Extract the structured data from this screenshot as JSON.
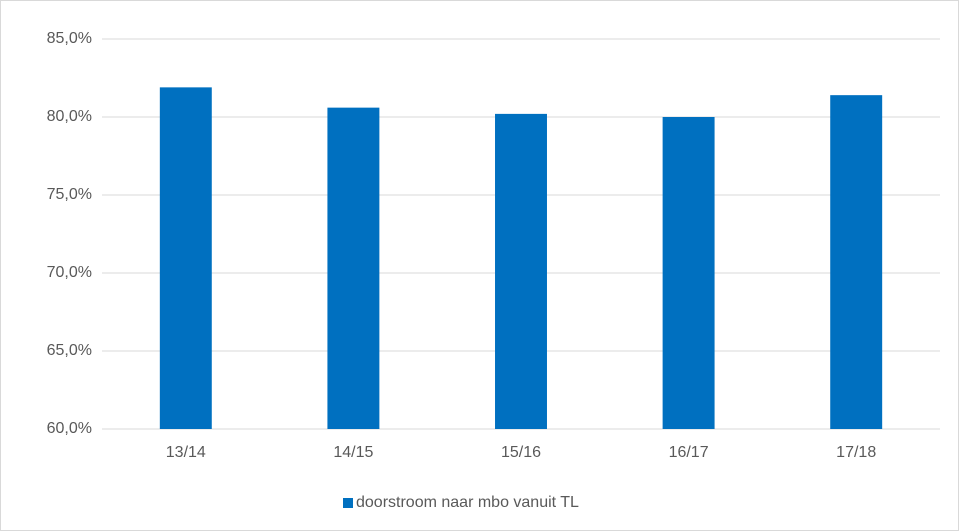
{
  "chart_data": {
    "type": "bar",
    "categories": [
      "13/14",
      "14/15",
      "15/16",
      "16/17",
      "17/18"
    ],
    "series": [
      {
        "name": "doorstroom naar mbo vanuit TL",
        "color": "#0070c0",
        "values": [
          81.9,
          80.6,
          80.2,
          80.0,
          81.4
        ]
      }
    ],
    "ylim": [
      60,
      85
    ],
    "yticks": [
      {
        "value": 60,
        "label": "60,0%"
      },
      {
        "value": 65,
        "label": "65,0%"
      },
      {
        "value": 70,
        "label": "70,0%"
      },
      {
        "value": 75,
        "label": "75,0%"
      },
      {
        "value": 80,
        "label": "80,0%"
      },
      {
        "value": 85,
        "label": "85,0%"
      }
    ],
    "grid": true,
    "legend": "bottom"
  }
}
